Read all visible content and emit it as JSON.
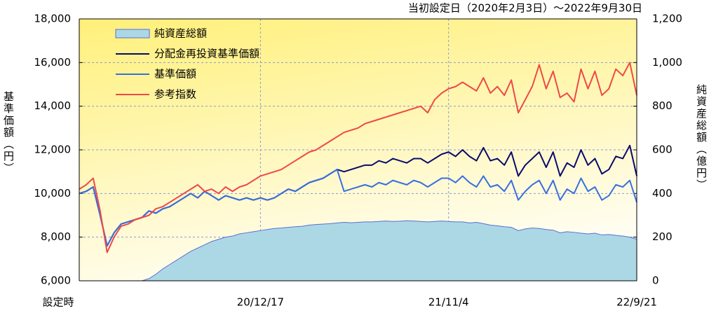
{
  "chart_data": {
    "type": "line",
    "title": "当初設定日（2020年2月3日）～2022年9月30日",
    "y_label": "基準価額（円）",
    "y2_label": "純資産総額（億円）",
    "categories": [
      "設定時",
      null,
      null,
      null,
      null,
      null,
      null,
      null,
      null,
      null,
      null,
      null,
      null,
      null,
      null,
      null,
      null,
      null,
      null,
      null,
      null,
      null,
      null,
      null,
      null,
      null,
      "20/12/17",
      null,
      null,
      null,
      null,
      null,
      null,
      null,
      null,
      null,
      null,
      null,
      null,
      null,
      null,
      null,
      null,
      null,
      null,
      null,
      null,
      null,
      null,
      null,
      null,
      null,
      null,
      "21/11/4",
      null,
      null,
      null,
      null,
      null,
      null,
      null,
      null,
      null,
      null,
      null,
      null,
      null,
      null,
      null,
      null,
      null,
      null,
      null,
      null,
      null,
      null,
      null,
      null,
      null,
      null,
      "22/9/21"
    ],
    "ylim": [
      6000,
      18000
    ],
    "yticks": [
      {
        "value": 6000,
        "label": "6,000"
      },
      {
        "value": 8000,
        "label": "8,000"
      },
      {
        "value": 10000,
        "label": "10,000"
      },
      {
        "value": 12000,
        "label": "12,000"
      },
      {
        "value": 14000,
        "label": "14,000"
      },
      {
        "value": 16000,
        "label": "16,000"
      },
      {
        "value": 18000,
        "label": "18,000"
      }
    ],
    "y2lim": [
      0,
      1200
    ],
    "y2ticks": [
      0,
      200,
      400,
      600,
      800,
      {
        "value": 1000,
        "label": "1,000"
      },
      {
        "value": 1200,
        "label": "1,200"
      }
    ],
    "grid": true,
    "legend": "upper-left",
    "series": [
      {
        "name": "純資産総額",
        "type": "area",
        "axis": "y2",
        "color": "#acd8e6",
        "values": [
          0,
          0,
          0,
          0,
          0,
          0,
          0,
          0,
          0,
          0,
          10,
          30,
          55,
          75,
          95,
          115,
          135,
          150,
          165,
          180,
          190,
          200,
          205,
          215,
          220,
          225,
          230,
          235,
          240,
          242,
          245,
          248,
          250,
          255,
          258,
          260,
          262,
          265,
          268,
          266,
          268,
          270,
          270,
          272,
          274,
          272,
          273,
          275,
          274,
          272,
          270,
          272,
          274,
          272,
          270,
          270,
          265,
          268,
          262,
          255,
          252,
          248,
          245,
          230,
          238,
          242,
          240,
          235,
          232,
          220,
          225,
          222,
          218,
          215,
          218,
          210,
          212,
          208,
          205,
          200,
          190
        ]
      },
      {
        "name": "分配金再投資基準価額",
        "type": "line",
        "color": "#0a0a6e",
        "values": [
          10000,
          10100,
          10300,
          9000,
          7600,
          8200,
          8600,
          8700,
          8800,
          8900,
          9200,
          9100,
          9300,
          9400,
          9600,
          9800,
          10000,
          9800,
          10100,
          9900,
          9700,
          9900,
          9800,
          9700,
          9800,
          9700,
          9800,
          9700,
          9800,
          10000,
          10200,
          10100,
          10300,
          10500,
          10600,
          10700,
          10900,
          11100,
          11000,
          11100,
          11200,
          11300,
          11300,
          11500,
          11400,
          11600,
          11500,
          11400,
          11600,
          11600,
          11400,
          11600,
          11800,
          11900,
          11700,
          12000,
          11700,
          11500,
          12100,
          11500,
          11600,
          11300,
          11900,
          10800,
          11300,
          11600,
          11900,
          11200,
          11900,
          10800,
          11400,
          11200,
          12000,
          11300,
          11600,
          10900,
          11100,
          11700,
          11600,
          12200,
          10800
        ]
      },
      {
        "name": "基準価額",
        "type": "line",
        "color": "#3a6fe0",
        "values": [
          10000,
          10100,
          10300,
          9000,
          7600,
          8200,
          8600,
          8700,
          8800,
          8900,
          9200,
          9100,
          9300,
          9400,
          9600,
          9800,
          10000,
          9800,
          10100,
          9900,
          9700,
          9900,
          9800,
          9700,
          9800,
          9700,
          9800,
          9700,
          9800,
          10000,
          10200,
          10100,
          10300,
          10500,
          10600,
          10700,
          10900,
          11100,
          10100,
          10200,
          10300,
          10400,
          10300,
          10500,
          10400,
          10600,
          10500,
          10400,
          10600,
          10500,
          10300,
          10500,
          10700,
          10700,
          10500,
          10800,
          10500,
          10300,
          10800,
          10300,
          10400,
          10100,
          10600,
          9700,
          10100,
          10400,
          10600,
          10000,
          10600,
          9700,
          10200,
          10000,
          10700,
          10100,
          10300,
          9700,
          9900,
          10400,
          10300,
          10600,
          9600
        ]
      },
      {
        "name": "参考指数",
        "type": "line",
        "color": "#f04848",
        "values": [
          10200,
          10400,
          10700,
          9200,
          7300,
          8000,
          8500,
          8600,
          8800,
          8900,
          9000,
          9300,
          9400,
          9600,
          9800,
          10000,
          10200,
          10400,
          10100,
          10200,
          10000,
          10300,
          10100,
          10300,
          10400,
          10600,
          10800,
          10900,
          11000,
          11100,
          11300,
          11500,
          11700,
          11900,
          12000,
          12200,
          12400,
          12600,
          12800,
          12900,
          13000,
          13200,
          13300,
          13400,
          13500,
          13600,
          13700,
          13800,
          13900,
          14000,
          13700,
          14300,
          14600,
          14800,
          14900,
          15100,
          14900,
          14700,
          15300,
          14600,
          14900,
          14500,
          15200,
          13700,
          14300,
          14900,
          15900,
          14800,
          15600,
          14400,
          14600,
          14200,
          15700,
          14800,
          15600,
          14500,
          14800,
          15700,
          15400,
          16000,
          14500
        ]
      }
    ]
  }
}
